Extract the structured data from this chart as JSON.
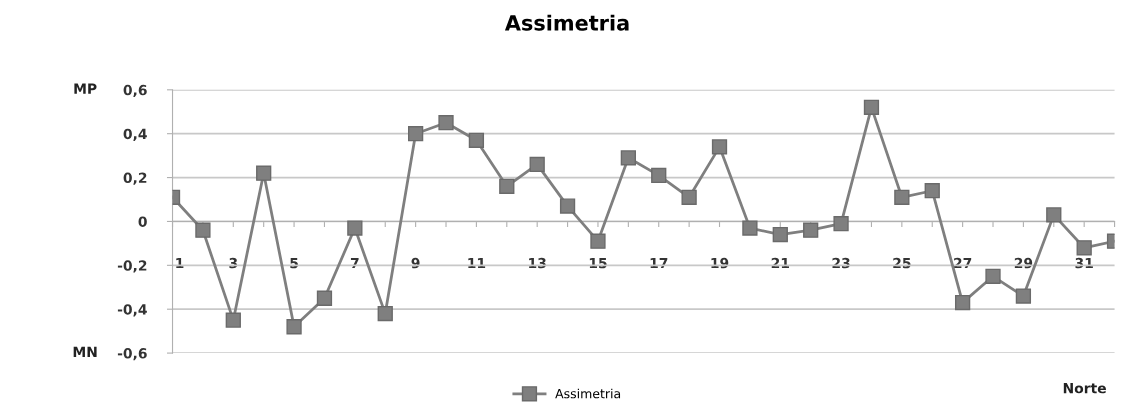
{
  "chart_data": {
    "type": "line",
    "title": "Assimetria",
    "categories": [
      "1",
      null,
      "3",
      null,
      "5",
      null,
      "7",
      null,
      "9",
      null,
      "11",
      null,
      "13",
      null,
      "15",
      null,
      "17",
      null,
      "19",
      null,
      "21",
      null,
      "23",
      null,
      "25",
      null,
      "27",
      null,
      "29",
      null,
      "31",
      null
    ],
    "series": [
      {
        "name": "Assimetria",
        "color": "#7f7f7f",
        "values": [
          0.11,
          -0.04,
          -0.45,
          0.22,
          -0.48,
          -0.35,
          -0.03,
          -0.42,
          0.4,
          0.45,
          0.37,
          0.16,
          0.26,
          0.07,
          -0.09,
          0.29,
          0.21,
          0.11,
          0.34,
          -0.03,
          -0.06,
          -0.04,
          -0.01,
          0.52,
          0.11,
          0.14,
          -0.37,
          -0.25,
          -0.34,
          0.03,
          -0.12,
          -0.09
        ]
      }
    ],
    "ylim": [
      -0.6,
      0.6
    ],
    "yticks": [
      {
        "value": -0.6,
        "label": "-0,6"
      },
      {
        "value": -0.4,
        "label": "-0,4"
      },
      {
        "value": -0.2,
        "label": "-0,2"
      },
      0,
      {
        "value": 0.2,
        "label": "0,2"
      },
      {
        "value": 0.4,
        "label": "0,4"
      },
      {
        "value": 0.6,
        "label": "0,6"
      }
    ],
    "annotations": [
      "MP",
      "MN",
      "Norte"
    ],
    "grid": "y",
    "legend": "bottom",
    "marker": "square",
    "line_style": "solid"
  }
}
